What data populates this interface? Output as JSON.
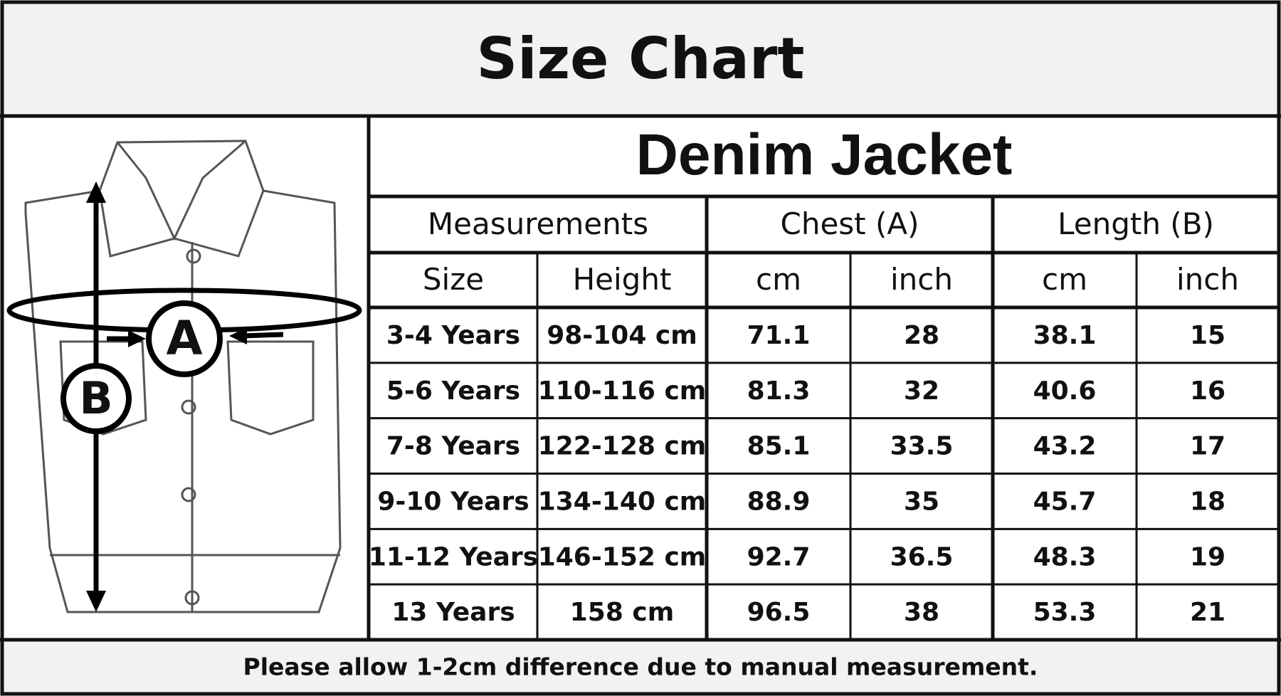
{
  "header": {
    "title": "Size Chart"
  },
  "diagram": {
    "labels": [
      "A",
      "B"
    ]
  },
  "table": {
    "title": "Denim Jacket",
    "groups": [
      "Measurements",
      "Chest (A)",
      "Length (B)"
    ],
    "columns": [
      "Size",
      "Height",
      "cm",
      "inch",
      "cm",
      "inch"
    ],
    "rows": [
      [
        "3-4 Years",
        "98-104 cm",
        "71.1",
        "28",
        "38.1",
        "15"
      ],
      [
        "5-6 Years",
        "110-116 cm",
        "81.3",
        "32",
        "40.6",
        "16"
      ],
      [
        "7-8 Years",
        "122-128 cm",
        "85.1",
        "33.5",
        "43.2",
        "17"
      ],
      [
        "9-10 Years",
        "134-140 cm",
        "88.9",
        "35",
        "45.7",
        "18"
      ],
      [
        "11-12 Years",
        "146-152 cm",
        "92.7",
        "36.5",
        "48.3",
        "19"
      ],
      [
        "13 Years",
        "158 cm",
        "96.5",
        "38",
        "53.3",
        "21"
      ]
    ]
  },
  "footer": {
    "note": "Please allow 1-2cm difference due to manual measurement."
  }
}
